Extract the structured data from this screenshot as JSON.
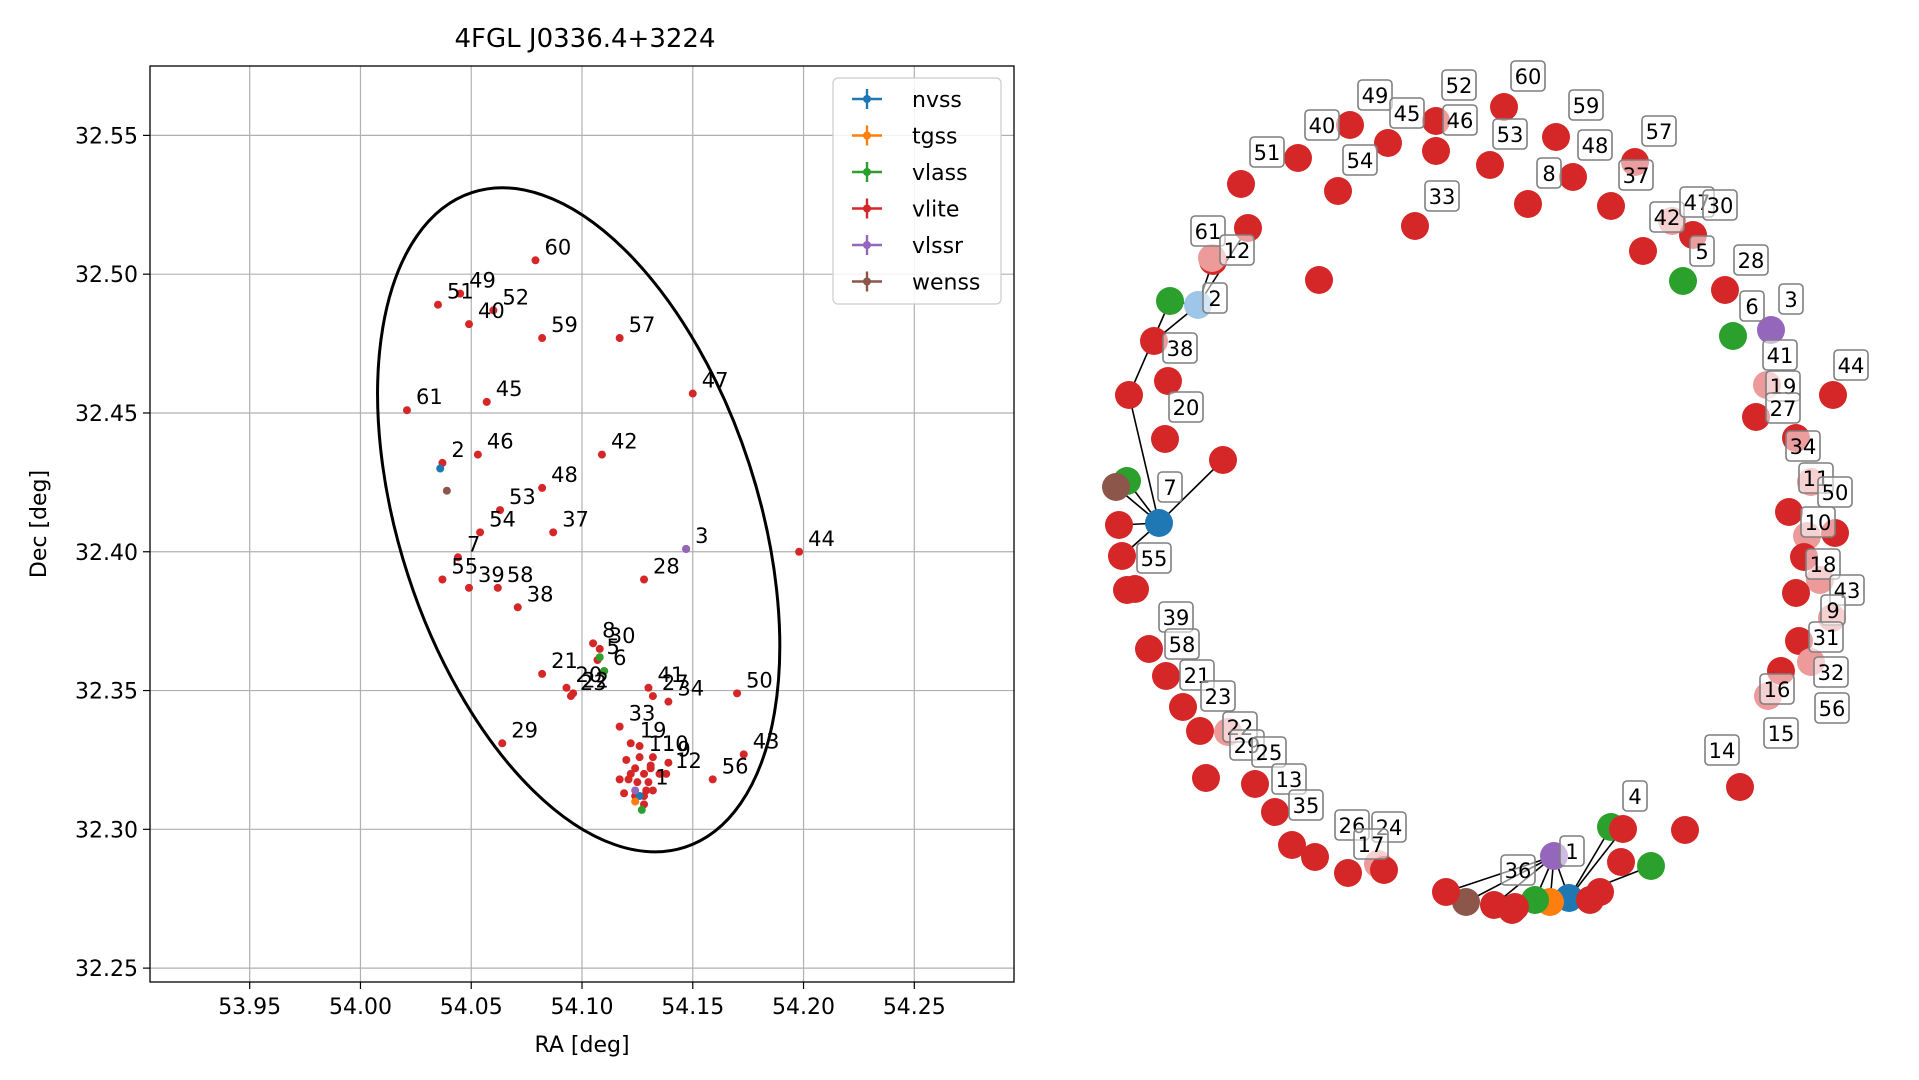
{
  "chart_data": [
    {
      "type": "scatter",
      "title": "4FGL J0336.4+3224",
      "xlabel": "RA [deg]",
      "ylabel": "Dec [deg]",
      "xlim": [
        53.905,
        54.295
      ],
      "ylim": [
        32.245,
        32.575
      ],
      "xticks": [
        "53.95",
        "54.00",
        "54.05",
        "54.10",
        "54.15",
        "54.20",
        "54.25"
      ],
      "yticks": [
        "32.25",
        "32.30",
        "32.35",
        "32.40",
        "32.45",
        "32.50",
        "32.55"
      ],
      "grid": true,
      "legend_position": "top-right",
      "ellipse": {
        "center_ra": 54.0985,
        "center_dec": 32.4115,
        "a": 0.081,
        "b": 0.124,
        "angle_deg": -18
      },
      "series": [
        {
          "name": "nvss",
          "color": "#1f77b4",
          "points": [
            [
              54.036,
              32.43
            ],
            [
              54.126,
              32.312
            ]
          ]
        },
        {
          "name": "tgss",
          "color": "#ff7f0e",
          "points": [
            [
              54.124,
              32.31
            ]
          ]
        },
        {
          "name": "vlass",
          "color": "#2ca02c",
          "points": [
            [
              54.108,
              32.362
            ],
            [
              54.11,
              32.357
            ],
            [
              54.127,
              32.307
            ]
          ]
        },
        {
          "name": "vlite",
          "color": "#d62728",
          "points": []
        },
        {
          "name": "vlssr",
          "color": "#9467bd",
          "points": [
            [
              54.147,
              32.401
            ],
            [
              54.124,
              32.314
            ]
          ]
        },
        {
          "name": "wenss",
          "color": "#8c564b",
          "points": [
            [
              54.039,
              32.422
            ]
          ]
        }
      ],
      "labeled_points": [
        {
          "label": "60",
          "x": 54.079,
          "y": 32.505
        },
        {
          "label": "49",
          "x": 54.045,
          "y": 32.493
        },
        {
          "label": "51",
          "x": 54.035,
          "y": 32.489
        },
        {
          "label": "52",
          "x": 54.06,
          "y": 32.487
        },
        {
          "label": "40",
          "x": 54.049,
          "y": 32.482
        },
        {
          "label": "59",
          "x": 54.082,
          "y": 32.477
        },
        {
          "label": "57",
          "x": 54.117,
          "y": 32.477
        },
        {
          "label": "47",
          "x": 54.15,
          "y": 32.457
        },
        {
          "label": "61",
          "x": 54.021,
          "y": 32.451
        },
        {
          "label": "45",
          "x": 54.057,
          "y": 32.454
        },
        {
          "label": "46",
          "x": 54.053,
          "y": 32.435
        },
        {
          "label": "42",
          "x": 54.109,
          "y": 32.435
        },
        {
          "label": "2",
          "x": 54.037,
          "y": 32.432
        },
        {
          "label": "48",
          "x": 54.082,
          "y": 32.423
        },
        {
          "label": "53",
          "x": 54.063,
          "y": 32.415
        },
        {
          "label": "54",
          "x": 54.054,
          "y": 32.407
        },
        {
          "label": "37",
          "x": 54.087,
          "y": 32.407
        },
        {
          "label": "3",
          "x": 54.147,
          "y": 32.401
        },
        {
          "label": "44",
          "x": 54.198,
          "y": 32.4
        },
        {
          "label": "7",
          "x": 54.044,
          "y": 32.398
        },
        {
          "label": "55",
          "x": 54.037,
          "y": 32.39
        },
        {
          "label": "39",
          "x": 54.049,
          "y": 32.387
        },
        {
          "label": "58",
          "x": 54.062,
          "y": 32.387
        },
        {
          "label": "28",
          "x": 54.128,
          "y": 32.39
        },
        {
          "label": "38",
          "x": 54.071,
          "y": 32.38
        },
        {
          "label": "8",
          "x": 54.105,
          "y": 32.367
        },
        {
          "label": "30",
          "x": 54.108,
          "y": 32.365
        },
        {
          "label": "5",
          "x": 54.107,
          "y": 32.361
        },
        {
          "label": "6",
          "x": 54.11,
          "y": 32.357
        },
        {
          "label": "21",
          "x": 54.082,
          "y": 32.356
        },
        {
          "label": "20",
          "x": 54.093,
          "y": 32.351
        },
        {
          "label": "23",
          "x": 54.095,
          "y": 32.348
        },
        {
          "label": "22",
          "x": 54.096,
          "y": 32.349
        },
        {
          "label": "41",
          "x": 54.13,
          "y": 32.351
        },
        {
          "label": "27",
          "x": 54.132,
          "y": 32.348
        },
        {
          "label": "34",
          "x": 54.139,
          "y": 32.346
        },
        {
          "label": "50",
          "x": 54.17,
          "y": 32.349
        },
        {
          "label": "33",
          "x": 54.117,
          "y": 32.337
        },
        {
          "label": "19",
          "x": 54.122,
          "y": 32.331
        },
        {
          "label": "29",
          "x": 54.064,
          "y": 32.331
        },
        {
          "label": "11",
          "x": 54.126,
          "y": 32.326
        },
        {
          "label": "10",
          "x": 54.132,
          "y": 32.326
        },
        {
          "label": "9",
          "x": 54.139,
          "y": 32.324
        },
        {
          "label": "43",
          "x": 54.173,
          "y": 32.327
        },
        {
          "label": "56",
          "x": 54.159,
          "y": 32.318
        },
        {
          "label": "12",
          "x": 54.138,
          "y": 32.32
        },
        {
          "label": "1",
          "x": 54.129,
          "y": 32.314
        }
      ],
      "points": [
        [
          54.12,
          32.325
        ],
        [
          54.124,
          32.322
        ],
        [
          54.128,
          32.32
        ],
        [
          54.131,
          32.322
        ],
        [
          54.135,
          32.32
        ],
        [
          54.117,
          32.318
        ],
        [
          54.121,
          32.318
        ],
        [
          54.125,
          32.317
        ],
        [
          54.13,
          32.317
        ],
        [
          54.132,
          32.314
        ],
        [
          54.119,
          32.313
        ],
        [
          54.124,
          32.312
        ],
        [
          54.128,
          32.312
        ],
        [
          54.128,
          32.309
        ],
        [
          54.131,
          32.323
        ],
        [
          54.126,
          32.33
        ],
        [
          54.122,
          32.32
        ]
      ]
    },
    {
      "type": "network",
      "node_labels": [
        "49",
        "52",
        "60",
        "59",
        "45",
        "46",
        "40",
        "51",
        "54",
        "53",
        "48",
        "57",
        "33",
        "8",
        "37",
        "42",
        "47",
        "30",
        "5",
        "28",
        "61",
        "12",
        "6",
        "3",
        "2",
        "41",
        "44",
        "19",
        "27",
        "38",
        "20",
        "34",
        "11",
        "50",
        "10",
        "7",
        "18",
        "55",
        "43",
        "9",
        "31",
        "39",
        "58",
        "32",
        "21",
        "16",
        "56",
        "23",
        "22",
        "15",
        "29",
        "25",
        "14",
        "13",
        "35",
        "4",
        "26",
        "24",
        "17",
        "1",
        "36"
      ]
    }
  ]
}
